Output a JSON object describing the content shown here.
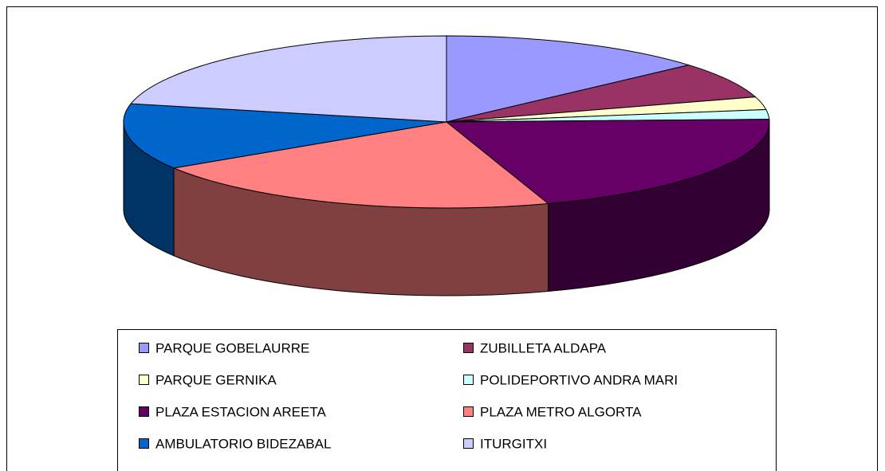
{
  "chart_data": {
    "type": "pie",
    "categories": [
      "PARQUE GOBELAURRE",
      "ZUBILLETA ALDAPA",
      "PARQUE GERNIKA",
      "POLIDEPORTIVO ANDRA MARI",
      "PLAZA ESTACION AREETA",
      "PLAZA METRO ALGORTA",
      "AMBULATORIO BIDEZABAL",
      "ITURGITXI"
    ],
    "values": [
      13.5,
      6.8,
      2.4,
      1.8,
      20.4,
      21.1,
      12.4,
      21.6
    ],
    "colors": [
      "#9999ff",
      "#993366",
      "#ffffcc",
      "#ccffff",
      "#660066",
      "#ff8080",
      "#0066cc",
      "#ccccff"
    ],
    "legend": "bottom"
  }
}
